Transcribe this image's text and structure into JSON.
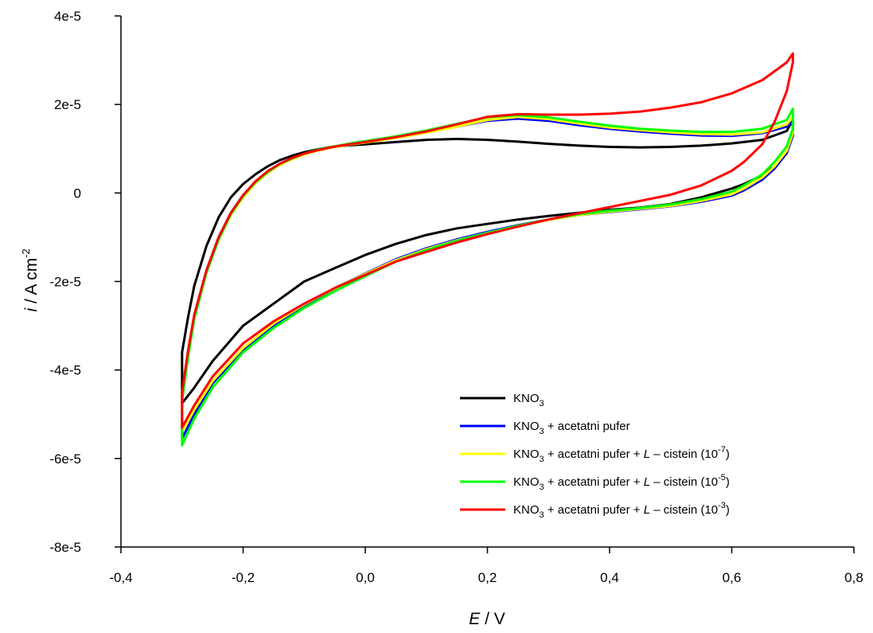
{
  "chart_data": {
    "type": "line",
    "xlim": [
      -0.4,
      0.8
    ],
    "ylim": [
      -8e-05,
      4e-05
    ],
    "x_ticks": [
      -0.4,
      -0.2,
      0.0,
      0.2,
      0.4,
      0.6,
      0.8
    ],
    "x_tick_labels": [
      "-0,4",
      "-0,2",
      "0,0",
      "0,2",
      "0,4",
      "0,6",
      "0,8"
    ],
    "y_ticks": [
      4e-05,
      2e-05,
      0,
      -2e-05,
      -4e-05,
      -6e-05,
      -8e-05
    ],
    "y_tick_labels": [
      "4e-5",
      "2e-5",
      "0",
      "-2e-5",
      "-4e-5",
      "-6e-5",
      "-8e-5"
    ],
    "xlabel": {
      "italic": "E",
      "rest": " / V"
    },
    "ylabel": {
      "italic": "i",
      "rest": " / A cm",
      "sup": "-2"
    },
    "grid": false,
    "legend_position": "bottom-right",
    "series": [
      {
        "name": "KNO3 ",
        "legend": {
          "main": "KNO",
          "sub": "3",
          "tail": "",
          "italic": "",
          "after": "",
          "sup": "",
          "end": ""
        },
        "color": "#000000",
        "x": [
          -0.3,
          -0.3,
          -0.29,
          -0.28,
          -0.26,
          -0.24,
          -0.22,
          -0.2,
          -0.18,
          -0.16,
          -0.14,
          -0.12,
          -0.1,
          -0.08,
          -0.06,
          -0.04,
          -0.02,
          0.0,
          0.05,
          0.1,
          0.15,
          0.2,
          0.25,
          0.3,
          0.35,
          0.4,
          0.45,
          0.5,
          0.55,
          0.6,
          0.65,
          0.69,
          0.7,
          0.7,
          0.69,
          0.67,
          0.65,
          0.62,
          0.6,
          0.55,
          0.5,
          0.45,
          0.4,
          0.35,
          0.3,
          0.25,
          0.2,
          0.15,
          0.1,
          0.05,
          0.0,
          -0.05,
          -0.1,
          -0.15,
          -0.2,
          -0.25,
          -0.28,
          -0.3
        ],
        "y": [
          -4.75e-05,
          -3.6e-05,
          -2.8e-05,
          -2.1e-05,
          -1.2e-05,
          -5.5e-06,
          -1e-06,
          2e-06,
          4.2e-06,
          6e-06,
          7.4e-06,
          8.4e-06,
          9.2e-06,
          9.8e-06,
          1.03e-05,
          1.06e-05,
          1.08e-05,
          1.1e-05,
          1.15e-05,
          1.2e-05,
          1.22e-05,
          1.2e-05,
          1.16e-05,
          1.11e-05,
          1.07e-05,
          1.04e-05,
          1.03e-05,
          1.04e-05,
          1.07e-05,
          1.12e-05,
          1.2e-05,
          1.4e-05,
          1.65e-05,
          1.3e-05,
          9e-06,
          6e-06,
          4e-06,
          2e-06,
          1e-06,
          -1e-06,
          -2.5e-06,
          -3.3e-06,
          -3.8e-06,
          -4.5e-06,
          -5.2e-06,
          -6e-06,
          -7e-06,
          -8e-06,
          -9.5e-06,
          -1.15e-05,
          -1.4e-05,
          -1.7e-05,
          -2e-05,
          -2.5e-05,
          -3e-05,
          -3.8e-05,
          -4.4e-05,
          -4.75e-05
        ]
      },
      {
        "name": "KNO3 + acetatni pufer",
        "legend": {
          "main": "KNO",
          "sub": "3",
          "tail": " + acetatni pufer",
          "italic": "",
          "after": "",
          "sup": "",
          "end": ""
        },
        "color": "#0000ff",
        "x": [
          -0.3,
          -0.3,
          -0.29,
          -0.28,
          -0.26,
          -0.24,
          -0.22,
          -0.2,
          -0.18,
          -0.16,
          -0.14,
          -0.12,
          -0.1,
          -0.08,
          -0.06,
          -0.04,
          -0.02,
          0.0,
          0.05,
          0.1,
          0.15,
          0.2,
          0.25,
          0.3,
          0.35,
          0.4,
          0.45,
          0.5,
          0.55,
          0.6,
          0.65,
          0.69,
          0.7,
          0.7,
          0.69,
          0.67,
          0.65,
          0.62,
          0.6,
          0.55,
          0.5,
          0.45,
          0.4,
          0.35,
          0.3,
          0.25,
          0.2,
          0.15,
          0.1,
          0.05,
          0.0,
          -0.05,
          -0.1,
          -0.15,
          -0.2,
          -0.25,
          -0.28,
          -0.3
        ],
        "y": [
          -5.55e-05,
          -4.6e-05,
          -3.6e-05,
          -2.8e-05,
          -1.75e-05,
          -1e-05,
          -4.5e-06,
          -5e-07,
          2.5e-06,
          4.8e-06,
          6.5e-06,
          7.8e-06,
          8.8e-06,
          9.6e-06,
          1.02e-05,
          1.07e-05,
          1.11e-05,
          1.15e-05,
          1.25e-05,
          1.37e-05,
          1.5e-05,
          1.63e-05,
          1.68e-05,
          1.63e-05,
          1.53e-05,
          1.45e-05,
          1.39e-05,
          1.34e-05,
          1.3e-05,
          1.29e-05,
          1.35e-05,
          1.5e-05,
          1.62e-05,
          1.3e-05,
          9e-06,
          5.5e-06,
          3e-06,
          6e-07,
          -6e-07,
          -2e-06,
          -3e-06,
          -3.7e-06,
          -4.3e-06,
          -5e-06,
          -6e-06,
          -7.3e-06,
          -8.8e-06,
          -1.05e-05,
          -1.25e-05,
          -1.5e-05,
          -1.82e-05,
          -2.15e-05,
          -2.55e-05,
          -3e-05,
          -3.55e-05,
          -4.3e-05,
          -5e-05,
          -5.55e-05
        ]
      },
      {
        "name": "KNO3 + acetatni pufer + L – cistein (10-7)",
        "legend": {
          "main": "KNO",
          "sub": "3",
          "tail": " + acetatni pufer + ",
          "italic": "L",
          "after": " – cistein (10",
          "sup": "-7",
          "end": ")"
        },
        "color": "#ffff00",
        "x": [
          -0.3,
          -0.3,
          -0.29,
          -0.28,
          -0.26,
          -0.24,
          -0.22,
          -0.2,
          -0.18,
          -0.16,
          -0.14,
          -0.12,
          -0.1,
          -0.08,
          -0.06,
          -0.04,
          -0.02,
          0.0,
          0.05,
          0.1,
          0.15,
          0.2,
          0.25,
          0.3,
          0.35,
          0.4,
          0.45,
          0.5,
          0.55,
          0.6,
          0.65,
          0.69,
          0.7,
          0.7,
          0.69,
          0.67,
          0.65,
          0.62,
          0.6,
          0.55,
          0.5,
          0.45,
          0.4,
          0.35,
          0.3,
          0.25,
          0.2,
          0.15,
          0.1,
          0.05,
          0.0,
          -0.05,
          -0.1,
          -0.15,
          -0.2,
          -0.25,
          -0.28,
          -0.3
        ],
        "y": [
          -5.4e-05,
          -4.55e-05,
          -3.6e-05,
          -2.8e-05,
          -1.8e-05,
          -1.05e-05,
          -5e-06,
          -1e-06,
          2.2e-06,
          4.5e-06,
          6.3e-06,
          7.6e-06,
          8.7e-06,
          9.5e-06,
          1.01e-05,
          1.06e-05,
          1.1e-05,
          1.14e-05,
          1.24e-05,
          1.36e-05,
          1.5e-05,
          1.65e-05,
          1.72e-05,
          1.67e-05,
          1.57e-05,
          1.48e-05,
          1.42e-05,
          1.37e-05,
          1.33e-05,
          1.32e-05,
          1.37e-05,
          1.55e-05,
          1.72e-05,
          1.35e-05,
          9.5e-06,
          6e-06,
          3.5e-06,
          1e-06,
          -3e-07,
          -1.8e-06,
          -2.9e-06,
          -3.6e-06,
          -4.2e-06,
          -5e-06,
          -6.1e-06,
          -7.5e-06,
          -9e-06,
          -1.07e-05,
          -1.27e-05,
          -1.52e-05,
          -1.83e-05,
          -2.15e-05,
          -2.52e-05,
          -2.95e-05,
          -3.5e-05,
          -4.25e-05,
          -4.9e-05,
          -5.4e-05
        ]
      },
      {
        "name": "KNO3 + acetatni pufer + L – cistein (10-5)",
        "legend": {
          "main": "KNO",
          "sub": "3",
          "tail": " + acetatni pufer + ",
          "italic": "L",
          "after": " – cistein (10",
          "sup": "-5",
          "end": ")"
        },
        "color": "#00ff00",
        "x": [
          -0.3,
          -0.3,
          -0.29,
          -0.28,
          -0.26,
          -0.24,
          -0.22,
          -0.2,
          -0.18,
          -0.16,
          -0.14,
          -0.12,
          -0.1,
          -0.08,
          -0.06,
          -0.04,
          -0.02,
          0.0,
          0.05,
          0.1,
          0.15,
          0.2,
          0.25,
          0.3,
          0.35,
          0.4,
          0.45,
          0.5,
          0.55,
          0.6,
          0.65,
          0.69,
          0.7,
          0.7,
          0.69,
          0.67,
          0.65,
          0.62,
          0.6,
          0.55,
          0.5,
          0.45,
          0.4,
          0.35,
          0.3,
          0.25,
          0.2,
          0.15,
          0.1,
          0.05,
          0.0,
          -0.05,
          -0.1,
          -0.15,
          -0.2,
          -0.25,
          -0.28,
          -0.3
        ],
        "y": [
          -5.7e-05,
          -4.7e-05,
          -3.7e-05,
          -2.85e-05,
          -1.8e-05,
          -1.05e-05,
          -4.8e-06,
          -7e-07,
          2.4e-06,
          4.7e-06,
          6.5e-06,
          7.8e-06,
          8.9e-06,
          9.7e-06,
          1.03e-05,
          1.08e-05,
          1.13e-05,
          1.17e-05,
          1.28e-05,
          1.41e-05,
          1.56e-05,
          1.71e-05,
          1.76e-05,
          1.71e-05,
          1.61e-05,
          1.52e-05,
          1.45e-05,
          1.41e-05,
          1.38e-05,
          1.38e-05,
          1.45e-05,
          1.65e-05,
          1.9e-05,
          1.45e-05,
          1.05e-05,
          7e-06,
          4.2e-06,
          1.7e-06,
          3e-07,
          -1.4e-06,
          -2.6e-06,
          -3.4e-06,
          -4e-06,
          -4.8e-06,
          -6e-06,
          -7.4e-06,
          -9e-06,
          -1.08e-05,
          -1.29e-05,
          -1.55e-05,
          -1.88e-05,
          -2.22e-05,
          -2.6e-05,
          -3.05e-05,
          -3.6e-05,
          -4.4e-05,
          -5.1e-05,
          -5.7e-05
        ]
      },
      {
        "name": "KNO3 + acetatni pufer + L – cistein (10-3)",
        "legend": {
          "main": "KNO",
          "sub": "3",
          "tail": " + acetatni pufer + ",
          "italic": "L",
          "after": " – cistein (10",
          "sup": "-3",
          "end": ")"
        },
        "color": "#ff0000",
        "x": [
          -0.3,
          -0.3,
          -0.29,
          -0.28,
          -0.26,
          -0.24,
          -0.22,
          -0.2,
          -0.18,
          -0.16,
          -0.14,
          -0.12,
          -0.1,
          -0.08,
          -0.06,
          -0.04,
          -0.02,
          0.0,
          0.05,
          0.1,
          0.15,
          0.2,
          0.25,
          0.3,
          0.35,
          0.4,
          0.45,
          0.5,
          0.55,
          0.6,
          0.65,
          0.69,
          0.7,
          0.7,
          0.69,
          0.67,
          0.65,
          0.62,
          0.6,
          0.55,
          0.5,
          0.45,
          0.4,
          0.35,
          0.3,
          0.25,
          0.2,
          0.15,
          0.1,
          0.05,
          0.0,
          -0.05,
          -0.1,
          -0.15,
          -0.2,
          -0.25,
          -0.28,
          -0.3
        ],
        "y": [
          -5.3e-05,
          -4.5e-05,
          -3.55e-05,
          -2.75e-05,
          -1.75e-05,
          -1e-05,
          -4.5e-06,
          -5e-07,
          2.6e-06,
          4.9e-06,
          6.6e-06,
          7.9e-06,
          8.9e-06,
          9.6e-06,
          1.02e-05,
          1.07e-05,
          1.11e-05,
          1.15e-05,
          1.26e-05,
          1.39e-05,
          1.55e-05,
          1.72e-05,
          1.78e-05,
          1.77e-05,
          1.77e-05,
          1.79e-05,
          1.84e-05,
          1.93e-05,
          2.05e-05,
          2.25e-05,
          2.55e-05,
          2.95e-05,
          3.15e-05,
          2.95e-05,
          2.3e-05,
          1.6e-05,
          1.1e-05,
          7e-06,
          5e-06,
          1.7e-06,
          -4e-07,
          -1.8e-06,
          -3.2e-06,
          -4.6e-06,
          -6e-06,
          -7.6e-06,
          -9.3e-06,
          -1.12e-05,
          -1.33e-05,
          -1.55e-05,
          -1.85e-05,
          -2.15e-05,
          -2.5e-05,
          -2.9e-05,
          -3.4e-05,
          -4.15e-05,
          -4.8e-05,
          -5.3e-05
        ]
      }
    ]
  }
}
